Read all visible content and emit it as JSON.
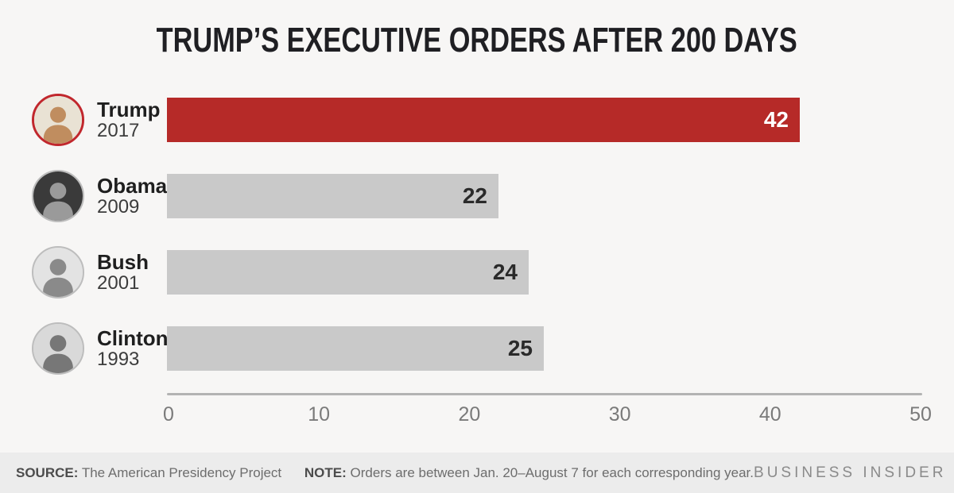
{
  "title": "TRUMP’S EXECUTIVE ORDERS AFTER 200 DAYS",
  "chart_data": {
    "type": "bar",
    "orientation": "horizontal",
    "title": "TRUMP’S EXECUTIVE ORDERS AFTER 200 DAYS",
    "categories": [
      "Trump 2017",
      "Obama 2009",
      "Bush 2001",
      "Clinton 1993"
    ],
    "values": [
      42,
      22,
      24,
      25
    ],
    "xlabel": "",
    "ylabel": "",
    "xlim": [
      0,
      50
    ],
    "x_ticks": [
      0,
      10,
      20,
      30,
      40,
      50
    ],
    "grid": false,
    "legend": false,
    "rows": [
      {
        "name": "Trump",
        "year": "2017",
        "value": 42,
        "bar_color": "#b62a28",
        "value_color": "#ffffff",
        "ring_color": "#c1272d",
        "avatar_bg": "#e9e2d4",
        "avatar_fg": "#c08d5f"
      },
      {
        "name": "Obama",
        "year": "2009",
        "value": 22,
        "bar_color": "#c9c9c9",
        "value_color": "#2a2a2a",
        "ring_color": "#bdbdbd",
        "avatar_bg": "#3a3a3a",
        "avatar_fg": "#9a9a9a"
      },
      {
        "name": "Bush",
        "year": "2001",
        "value": 24,
        "bar_color": "#c9c9c9",
        "value_color": "#2a2a2a",
        "ring_color": "#bdbdbd",
        "avatar_bg": "#e3e3e3",
        "avatar_fg": "#8a8a8a"
      },
      {
        "name": "Clinton",
        "year": "1993",
        "value": 25,
        "bar_color": "#c9c9c9",
        "value_color": "#2a2a2a",
        "ring_color": "#bdbdbd",
        "avatar_bg": "#d9d9d9",
        "avatar_fg": "#777777"
      }
    ]
  },
  "footer": {
    "source_label": "SOURCE:",
    "source_text": "The American Presidency Project",
    "note_label": "NOTE:",
    "note_text": "Orders are between Jan. 20–August 7 for each corresponding year.",
    "brand": "BUSINESS INSIDER"
  },
  "colors": {
    "background": "#f7f6f5",
    "footer_background": "#ececec",
    "title": "#1f1f23",
    "highlight_bar": "#b62a28",
    "default_bar": "#c9c9c9",
    "axis_line": "#b3b3b3",
    "tick_label": "#7a7a7a",
    "brand_text": "#8a8a8a"
  }
}
